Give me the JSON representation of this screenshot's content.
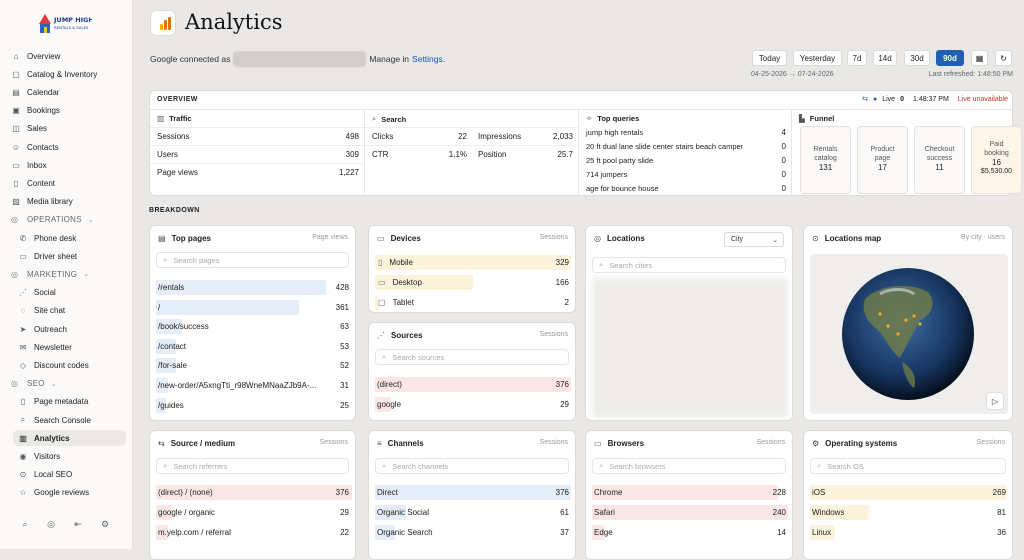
{
  "brand": {
    "logo_line1": "JUMP HIGH",
    "logo_line2": "RENTALS & SALES"
  },
  "sidebar": {
    "items": [
      {
        "label": "Overview",
        "icon": "home-icon",
        "glyph": "⌂"
      },
      {
        "label": "Catalog & Inventory",
        "icon": "box-icon",
        "glyph": "▢"
      },
      {
        "label": "Calendar",
        "icon": "calendar-icon",
        "glyph": "▤"
      },
      {
        "label": "Bookings",
        "icon": "clipboard-icon",
        "glyph": "▣"
      },
      {
        "label": "Sales",
        "icon": "cart-icon",
        "glyph": "◫"
      },
      {
        "label": "Contacts",
        "icon": "users-icon",
        "glyph": "☺"
      },
      {
        "label": "Inbox",
        "icon": "inbox-icon",
        "glyph": "▭"
      },
      {
        "label": "Content",
        "icon": "document-icon",
        "glyph": "▯"
      },
      {
        "label": "Media library",
        "icon": "image-icon",
        "glyph": "▨"
      }
    ],
    "operations": {
      "label": "OPERATIONS",
      "items": [
        {
          "label": "Phone desk",
          "icon": "phone-icon",
          "glyph": "✆"
        },
        {
          "label": "Driver sheet",
          "icon": "sheet-icon",
          "glyph": "▭"
        }
      ]
    },
    "marketing": {
      "label": "MARKETING",
      "items": [
        {
          "label": "Social",
          "icon": "share-icon",
          "glyph": "⋰"
        },
        {
          "label": "Site chat",
          "icon": "chat-icon",
          "glyph": "◌"
        },
        {
          "label": "Outreach",
          "icon": "send-icon",
          "glyph": "➤"
        },
        {
          "label": "Newsletter",
          "icon": "mail-icon",
          "glyph": "✉"
        },
        {
          "label": "Discount codes",
          "icon": "tag-icon",
          "glyph": "◇"
        }
      ]
    },
    "seo": {
      "label": "SEO",
      "items": [
        {
          "label": "Page metadata",
          "icon": "file-icon",
          "glyph": "▯"
        },
        {
          "label": "Search Console",
          "icon": "search-icon",
          "glyph": "⌕"
        },
        {
          "label": "Analytics",
          "icon": "bar-chart-icon",
          "glyph": "▥"
        },
        {
          "label": "Visitors",
          "icon": "eye-icon",
          "glyph": "◉"
        },
        {
          "label": "Local SEO",
          "icon": "pin-icon",
          "glyph": "⊙"
        },
        {
          "label": "Google reviews",
          "icon": "star-icon",
          "glyph": "☆"
        }
      ]
    }
  },
  "header": {
    "title": "Analytics",
    "connected_prefix": "Google connected as",
    "manage_prefix": "Manage in",
    "settings_link": "Settings",
    "settings_suffix": "."
  },
  "dates": {
    "buttons": [
      "Today",
      "Yesterday",
      "7d",
      "14d",
      "30d",
      "90d"
    ],
    "selected": "90d",
    "range": "04-25-2026 → 07-24-2026",
    "refreshed": "Last refreshed: 1:48:50 PM"
  },
  "overview": {
    "heading": "OVERVIEW",
    "live_label": "Live",
    "live_count": "0",
    "live_time": "1:48:37 PM",
    "live_status": "Live unavailable",
    "traffic": {
      "title": "Traffic",
      "rows": [
        {
          "k": "Sessions",
          "v": "498"
        },
        {
          "k": "Users",
          "v": "309"
        },
        {
          "k": "Page views",
          "v": "1,227"
        }
      ]
    },
    "search": {
      "title": "Search",
      "left": [
        {
          "k": "Clicks",
          "v": "22"
        },
        {
          "k": "CTR",
          "v": "1.1%"
        }
      ],
      "right": [
        {
          "k": "Impressions",
          "v": "2,033"
        },
        {
          "k": "Position",
          "v": "25.7"
        }
      ]
    },
    "queries": {
      "title": "Top queries",
      "rows": [
        {
          "k": "jump high rentals",
          "v": "4"
        },
        {
          "k": "20 ft dual lane slide center stairs beach camper",
          "v": "0"
        },
        {
          "k": "25 ft pool party slide",
          "v": "0"
        },
        {
          "k": "714 jumpers",
          "v": "0"
        },
        {
          "k": "age for bounce house",
          "v": "0"
        }
      ]
    },
    "funnel": {
      "title": "Funnel",
      "steps": [
        {
          "l1": "Rentals",
          "l2": "catalog",
          "v": "131"
        },
        {
          "l1": "Product",
          "l2": "page",
          "v": "17"
        },
        {
          "l1": "Checkout",
          "l2": "success",
          "v": "11"
        },
        {
          "l1": "Paid",
          "l2": "booking",
          "v": "16",
          "extra": "$5,530.00"
        }
      ]
    }
  },
  "breakdown": {
    "heading": "BREAKDOWN",
    "top_pages": {
      "title": "Top pages",
      "note": "Page views",
      "search": "Search pages",
      "rows": [
        {
          "k": "/rentals",
          "v": "428",
          "pct": 1.0
        },
        {
          "k": "/",
          "v": "361",
          "pct": 0.84
        },
        {
          "k": "/book/success",
          "v": "63",
          "pct": 0.15
        },
        {
          "k": "/contact",
          "v": "53",
          "pct": 0.12
        },
        {
          "k": "/for-sale",
          "v": "52",
          "pct": 0.12
        },
        {
          "k": "/new-order/A5xngTti_r98WneMNaaZJb9A-...",
          "v": "31",
          "pct": 0.07
        },
        {
          "k": "/guides",
          "v": "25",
          "pct": 0.06
        }
      ]
    },
    "devices": {
      "title": "Devices",
      "note": "Sessions",
      "rows": [
        {
          "k": "Mobile",
          "v": "329",
          "pct": 1.0,
          "icon": "mobile-icon"
        },
        {
          "k": "Desktop",
          "v": "166",
          "pct": 0.5,
          "icon": "desktop-icon"
        },
        {
          "k": "Tablet",
          "v": "2",
          "pct": 0.0,
          "icon": "tablet-icon"
        }
      ]
    },
    "sources": {
      "title": "Sources",
      "note": "Sessions",
      "search": "Search sources",
      "rows": [
        {
          "k": "(direct)",
          "v": "376",
          "pct": 1.0
        },
        {
          "k": "google",
          "v": "29",
          "pct": 0.08
        }
      ]
    },
    "locations": {
      "title": "Locations",
      "select": "City",
      "search": "Search cities"
    },
    "map": {
      "title": "Locations map",
      "note": "By city · users"
    },
    "source_medium": {
      "title": "Source / medium",
      "note": "Sessions",
      "search": "Search referrers",
      "rows": [
        {
          "k": "(direct) / (none)",
          "v": "376",
          "pct": 1.0
        },
        {
          "k": "google / organic",
          "v": "29",
          "pct": 0.08
        },
        {
          "k": "m.yelp.com / referral",
          "v": "22",
          "pct": 0.06
        }
      ]
    },
    "channels": {
      "title": "Channels",
      "note": "Sessions",
      "search": "Search channels",
      "rows": [
        {
          "k": "Direct",
          "v": "376",
          "pct": 1.0
        },
        {
          "k": "Organic Social",
          "v": "61",
          "pct": 0.16
        },
        {
          "k": "Organic Search",
          "v": "37",
          "pct": 0.1
        }
      ]
    },
    "browsers": {
      "title": "Browsers",
      "note": "Sessions",
      "search": "Search browsers",
      "rows": [
        {
          "k": "Chrome",
          "v": "228",
          "pct": 0.95
        },
        {
          "k": "Safari",
          "v": "240",
          "pct": 1.0
        },
        {
          "k": "Edge",
          "v": "14",
          "pct": 0.06
        }
      ]
    },
    "os": {
      "title": "Operating systems",
      "note": "Sessions",
      "search": "Search OS",
      "rows": [
        {
          "k": "iOS",
          "v": "269",
          "pct": 1.0
        },
        {
          "k": "Windows",
          "v": "81",
          "pct": 0.3
        },
        {
          "k": "Linux",
          "v": "36",
          "pct": 0.13
        }
      ]
    }
  }
}
